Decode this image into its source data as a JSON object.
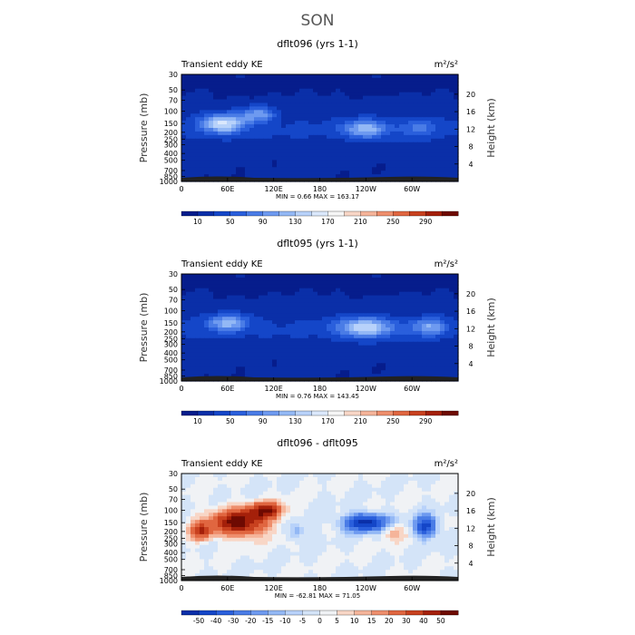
{
  "figure": {
    "title": "SON"
  },
  "colors": {
    "seq": [
      "#061d8c",
      "#0a2fa8",
      "#1446c8",
      "#2a5fdc",
      "#4a7ce6",
      "#6e9af0",
      "#93b8f5",
      "#b8d2fa",
      "#dbe8fc",
      "#f6f6f6",
      "#f8d6c6",
      "#f5b49a",
      "#ee8e6c",
      "#e06640",
      "#c8411f",
      "#a4200a",
      "#6e0a02"
    ],
    "div": [
      "#0a2fa8",
      "#1446c8",
      "#2a5fdc",
      "#4a7ce6",
      "#6e9af0",
      "#93b8f5",
      "#b8d2fa",
      "#d4e4f8",
      "#f0f2f5",
      "#f8d6c6",
      "#f5b49a",
      "#ee8e6c",
      "#e06640",
      "#c8411f",
      "#a4200a",
      "#6e0a02"
    ]
  },
  "chart_data": [
    {
      "type": "heatmap",
      "title": "dflt096 (yrs 1-1)",
      "left_label": "Transient eddy KE",
      "right_label": "m²/s²",
      "ylabel": "Pressure (mb)",
      "y2label": "Height (km)",
      "x_ticks": [
        "0",
        "60E",
        "120E",
        "180",
        "120W",
        "60W"
      ],
      "x_tick_positions": [
        0,
        60,
        120,
        180,
        240,
        300
      ],
      "xlim": [
        0,
        360
      ],
      "y_ticks": [
        "30",
        "50",
        "70",
        "100",
        "150",
        "200",
        "250",
        "300",
        "400",
        "500",
        "700",
        "850",
        "1000"
      ],
      "y_tick_values": [
        30,
        50,
        70,
        100,
        150,
        200,
        250,
        300,
        400,
        500,
        700,
        850,
        1000
      ],
      "ylim": [
        30,
        1000
      ],
      "y_scale": "log",
      "y2_ticks": [
        "4",
        "8",
        "12",
        "16",
        "20"
      ],
      "y2_tick_values": [
        4,
        8,
        12,
        16,
        20
      ],
      "stats": "MIN =     0.66   MAX =  163.17",
      "min": 0.66,
      "max": 163.17,
      "colorbar_labels": [
        "10",
        "50",
        "90",
        "130",
        "170",
        "210",
        "250",
        "290"
      ],
      "levels": [
        0,
        10,
        30,
        50,
        70,
        90,
        110,
        130,
        150,
        170,
        190,
        210,
        230,
        250,
        270,
        290,
        310
      ],
      "blobs": [
        {
          "lon": 55,
          "p": 150,
          "amp": 125,
          "slon": 20,
          "sp": 0.22
        },
        {
          "lon": 100,
          "p": 110,
          "amp": 80,
          "slon": 15,
          "sp": 0.18
        },
        {
          "lon": 240,
          "p": 180,
          "amp": 95,
          "slon": 20,
          "sp": 0.2
        },
        {
          "lon": 310,
          "p": 170,
          "amp": 50,
          "slon": 15,
          "sp": 0.2
        }
      ]
    },
    {
      "type": "heatmap",
      "title": "dflt095 (yrs 1-1)",
      "left_label": "Transient eddy KE",
      "right_label": "m²/s²",
      "ylabel": "Pressure (mb)",
      "y2label": "Height (km)",
      "x_ticks": [
        "0",
        "60E",
        "120E",
        "180",
        "120W",
        "60W"
      ],
      "x_tick_positions": [
        0,
        60,
        120,
        180,
        240,
        300
      ],
      "xlim": [
        0,
        360
      ],
      "y_ticks": [
        "30",
        "50",
        "70",
        "100",
        "150",
        "200",
        "250",
        "300",
        "400",
        "500",
        "700",
        "850",
        "1000"
      ],
      "y_tick_values": [
        30,
        50,
        70,
        100,
        150,
        200,
        250,
        300,
        400,
        500,
        700,
        850,
        1000
      ],
      "ylim": [
        30,
        1000
      ],
      "y_scale": "log",
      "y2_ticks": [
        "4",
        "8",
        "12",
        "16",
        "20"
      ],
      "y2_tick_values": [
        4,
        8,
        12,
        16,
        20
      ],
      "stats": "MIN =     0.76   MAX =  143.45",
      "min": 0.76,
      "max": 143.45,
      "colorbar_labels": [
        "10",
        "50",
        "90",
        "130",
        "170",
        "210",
        "250",
        "290"
      ],
      "levels": [
        0,
        10,
        30,
        50,
        70,
        90,
        110,
        130,
        150,
        170,
        190,
        210,
        230,
        250,
        270,
        290,
        310
      ],
      "blobs": [
        {
          "lon": 60,
          "p": 150,
          "amp": 90,
          "slon": 18,
          "sp": 0.2
        },
        {
          "lon": 240,
          "p": 175,
          "amp": 120,
          "slon": 25,
          "sp": 0.22
        },
        {
          "lon": 322,
          "p": 170,
          "amp": 80,
          "slon": 15,
          "sp": 0.2
        }
      ]
    },
    {
      "type": "heatmap",
      "title": "dflt096 - dflt095",
      "left_label": "Transient eddy KE",
      "right_label": "m²/s²",
      "ylabel": "Pressure (mb)",
      "y2label": "Height (km)",
      "x_ticks": [
        "0",
        "60E",
        "120E",
        "180",
        "120W",
        "60W"
      ],
      "x_tick_positions": [
        0,
        60,
        120,
        180,
        240,
        300
      ],
      "xlim": [
        0,
        360
      ],
      "y_ticks": [
        "30",
        "50",
        "70",
        "100",
        "150",
        "200",
        "250",
        "300",
        "400",
        "500",
        "700",
        "850",
        "1000"
      ],
      "y_tick_values": [
        30,
        50,
        70,
        100,
        150,
        200,
        250,
        300,
        400,
        500,
        700,
        850,
        1000
      ],
      "ylim": [
        30,
        1000
      ],
      "y_scale": "log",
      "y2_ticks": [
        "4",
        "8",
        "12",
        "16",
        "20"
      ],
      "y2_tick_values": [
        4,
        8,
        12,
        16,
        20
      ],
      "stats": "MIN =  -62.81   MAX =   71.05",
      "min": -62.81,
      "max": 71.05,
      "colorbar_labels": [
        "-50",
        "-40",
        "-30",
        "-20",
        "-15",
        "-10",
        "-5",
        "0",
        "5",
        "10",
        "15",
        "20",
        "30",
        "40",
        "50"
      ],
      "levels": [
        -60,
        -50,
        -40,
        -30,
        -20,
        -15,
        -10,
        -5,
        0,
        5,
        10,
        15,
        20,
        30,
        40,
        50,
        60
      ],
      "blobs": [
        {
          "lon": 75,
          "p": 150,
          "amp": 55,
          "slon": 25,
          "sp": 0.3
        },
        {
          "lon": 110,
          "p": 100,
          "amp": 45,
          "slon": 15,
          "sp": 0.18
        },
        {
          "lon": 25,
          "p": 200,
          "amp": 35,
          "slon": 10,
          "sp": 0.2
        },
        {
          "lon": 240,
          "p": 150,
          "amp": -55,
          "slon": 20,
          "sp": 0.2
        },
        {
          "lon": 318,
          "p": 170,
          "amp": -45,
          "slon": 10,
          "sp": 0.25
        },
        {
          "lon": 150,
          "p": 200,
          "amp": -15,
          "slon": 8,
          "sp": 0.2
        },
        {
          "lon": 275,
          "p": 200,
          "amp": 15,
          "slon": 10,
          "sp": 0.2
        }
      ]
    }
  ]
}
